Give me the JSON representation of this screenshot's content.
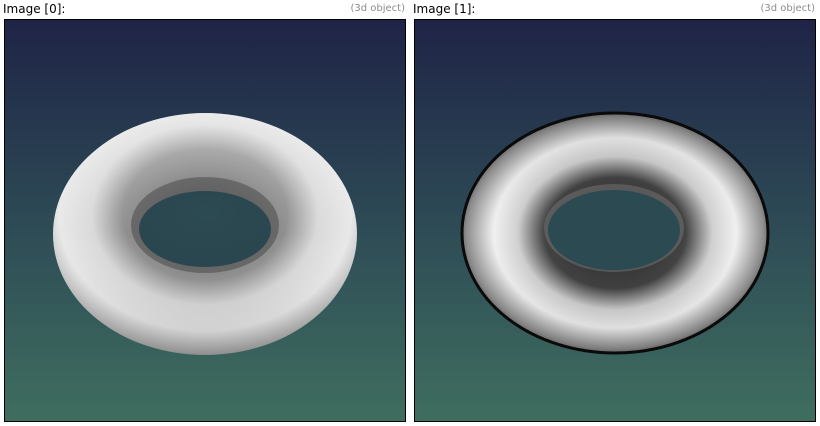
{
  "panels": [
    {
      "title": "Image [0]:",
      "subtitle": "(3d object)",
      "object": "torus",
      "shading": "soft"
    },
    {
      "title": "Image [1]:",
      "subtitle": "(3d object)",
      "object": "torus",
      "shading": "high-contrast"
    }
  ],
  "colors": {
    "background_top": "#1f2447",
    "background_bottom": "#3f6e5f",
    "torus_highlight": "#f2f2f2",
    "torus_shadow": "#3a3a3a",
    "frame_border": "#000000",
    "subtitle_text": "#8c8c8c"
  }
}
